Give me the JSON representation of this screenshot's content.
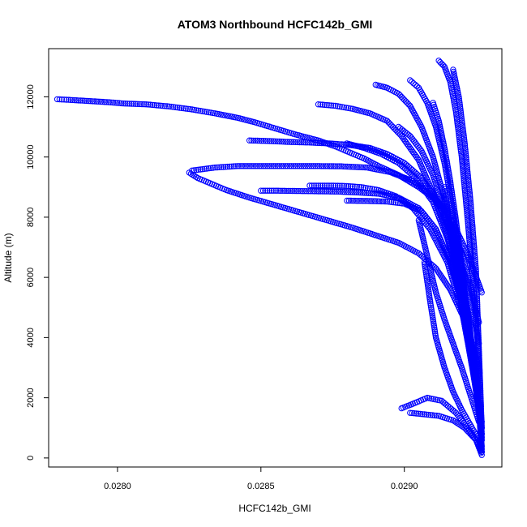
{
  "chart_data": {
    "type": "scatter",
    "title": "ATOM3 Northbound HCFC142b_GMI",
    "xlabel": "HCFC142b_GMI",
    "ylabel": "Altitude (m)",
    "xlim": [
      0.02776,
      0.02934
    ],
    "ylim": [
      -300,
      13600
    ],
    "xticks": [
      {
        "value": 0.028,
        "label": "0.0280"
      },
      {
        "value": 0.0285,
        "label": "0.0285"
      },
      {
        "value": 0.029,
        "label": "0.0290"
      }
    ],
    "yticks": [
      {
        "value": 0,
        "label": "0"
      },
      {
        "value": 2000,
        "label": "2000"
      },
      {
        "value": 4000,
        "label": "4000"
      },
      {
        "value": 6000,
        "label": "6000"
      },
      {
        "value": 8000,
        "label": "8000"
      },
      {
        "value": 10000,
        "label": "10000"
      },
      {
        "value": 12000,
        "label": "12000"
      }
    ],
    "marker": "open-circle",
    "color": "#0000ff",
    "grid": false,
    "legend": "none",
    "series": [
      {
        "x": [
          0.02779,
          0.02783,
          0.0279,
          0.02797,
          0.02802,
          0.0281,
          0.02818,
          0.02826,
          0.02834,
          0.02842,
          0.02848,
          0.02855,
          0.02862,
          0.0287,
          0.02876,
          0.02881,
          0.02886,
          0.02891,
          0.02898,
          0.02905,
          0.02912,
          0.02917,
          0.02922,
          0.02927
        ],
        "y": [
          11920,
          11900,
          11860,
          11820,
          11780,
          11750,
          11680,
          11580,
          11450,
          11300,
          11150,
          10950,
          10750,
          10550,
          10350,
          10150,
          9950,
          9700,
          9400,
          9000,
          8500,
          7800,
          6800,
          5500
        ]
      },
      {
        "x": [
          0.02825,
          0.02828,
          0.02833,
          0.02838,
          0.02846,
          0.02855,
          0.02864,
          0.02873,
          0.02882,
          0.0289,
          0.02898,
          0.02905,
          0.02911,
          0.02916,
          0.02921,
          0.02926
        ],
        "y": [
          9480,
          9300,
          9100,
          8900,
          8650,
          8400,
          8150,
          7900,
          7650,
          7400,
          7150,
          6800,
          6300,
          5600,
          4600,
          3000
        ]
      },
      {
        "x": [
          0.02826,
          0.02834,
          0.02842,
          0.02851,
          0.0286,
          0.02869,
          0.02878,
          0.02887,
          0.02895,
          0.02903,
          0.0291,
          0.02916,
          0.02921,
          0.02926
        ],
        "y": [
          9550,
          9650,
          9700,
          9700,
          9700,
          9700,
          9690,
          9650,
          9500,
          9200,
          8700,
          7800,
          6500,
          4500
        ]
      },
      {
        "x": [
          0.02846,
          0.02853,
          0.0286,
          0.02867,
          0.02874,
          0.02881,
          0.02888,
          0.02894,
          0.029,
          0.02906,
          0.02912,
          0.02917,
          0.02922,
          0.02926
        ],
        "y": [
          10550,
          10530,
          10500,
          10480,
          10450,
          10400,
          10300,
          10100,
          9800,
          9300,
          8500,
          7300,
          5800,
          3800
        ]
      },
      {
        "x": [
          0.0285,
          0.02856,
          0.02863,
          0.0287,
          0.02877,
          0.02884,
          0.02891,
          0.02898,
          0.02905,
          0.02911,
          0.02917,
          0.02922,
          0.02926
        ],
        "y": [
          8880,
          8880,
          8870,
          8860,
          8850,
          8820,
          8780,
          8650,
          8300,
          7600,
          6300,
          4300,
          2000
        ]
      },
      {
        "x": [
          0.0287,
          0.02876,
          0.02882,
          0.02888,
          0.02894,
          0.02899,
          0.02905,
          0.0291,
          0.02915,
          0.0292,
          0.02924,
          0.02927
        ],
        "y": [
          11750,
          11700,
          11600,
          11450,
          11200,
          10700,
          9900,
          8800,
          7400,
          5600,
          3400,
          1200
        ]
      },
      {
        "x": [
          0.0289,
          0.02894,
          0.02898,
          0.02902,
          0.02906,
          0.0291,
          0.02914,
          0.02918,
          0.02922,
          0.02925,
          0.02927
        ],
        "y": [
          12400,
          12300,
          12100,
          11700,
          11000,
          10000,
          8600,
          6800,
          4800,
          2600,
          700
        ]
      },
      {
        "x": [
          0.02902,
          0.02905,
          0.02908,
          0.02911,
          0.02914,
          0.02917,
          0.0292,
          0.02923,
          0.02926,
          0.02927
        ],
        "y": [
          12550,
          12300,
          11800,
          11000,
          9800,
          8200,
          6200,
          4200,
          2000,
          300
        ]
      },
      {
        "x": [
          0.02912,
          0.02914,
          0.02916,
          0.02918,
          0.0292,
          0.02922,
          0.02924,
          0.02926,
          0.02927
        ],
        "y": [
          13200,
          13000,
          12500,
          11500,
          10000,
          8000,
          5800,
          3300,
          800
        ]
      },
      {
        "x": [
          0.02917,
          0.02919,
          0.02921,
          0.02923,
          0.02925,
          0.02926,
          0.02927
        ],
        "y": [
          12900,
          12000,
          10500,
          8600,
          6200,
          3600,
          1000
        ]
      },
      {
        "x": [
          0.0288,
          0.02886,
          0.02892,
          0.02898,
          0.02904,
          0.0291,
          0.02915,
          0.0292,
          0.02924,
          0.02927
        ],
        "y": [
          10450,
          10300,
          10100,
          9800,
          9300,
          8500,
          7300,
          5600,
          3500,
          1000
        ]
      },
      {
        "x": [
          0.0288,
          0.02887,
          0.02894,
          0.029,
          0.02906,
          0.02911,
          0.02916,
          0.02921,
          0.02925
        ],
        "y": [
          8550,
          8540,
          8520,
          8450,
          8200,
          7600,
          6500,
          4800,
          2600
        ]
      },
      {
        "x": [
          0.02867,
          0.02873,
          0.02879,
          0.02885,
          0.02891,
          0.02897,
          0.02903,
          0.02909,
          0.02915,
          0.0292,
          0.02924,
          0.02927
        ],
        "y": [
          9050,
          9050,
          9040,
          9000,
          8900,
          8700,
          8300,
          7600,
          6500,
          4900,
          2900,
          800
        ]
      },
      {
        "x": [
          0.02898,
          0.02902,
          0.02906,
          0.0291,
          0.02914,
          0.02918,
          0.02922,
          0.02925,
          0.02927
        ],
        "y": [
          11000,
          10700,
          10200,
          9400,
          8200,
          6600,
          4700,
          2700,
          600
        ]
      },
      {
        "x": [
          0.0291,
          0.02912,
          0.02914,
          0.02916,
          0.02918,
          0.0292,
          0.02922,
          0.02924,
          0.02926,
          0.02927
        ],
        "y": [
          11800,
          11200,
          10300,
          9200,
          7900,
          6400,
          4800,
          3200,
          1600,
          200
        ]
      },
      {
        "x": [
          0.02907,
          0.02909,
          0.02911,
          0.02914,
          0.02917,
          0.0292,
          0.02923,
          0.02926,
          0.02927
        ],
        "y": [
          6500,
          5200,
          4000,
          3000,
          2200,
          1600,
          1100,
          600,
          200
        ]
      },
      {
        "x": [
          0.02899,
          0.02903,
          0.02908,
          0.02913,
          0.02918,
          0.02922,
          0.02925,
          0.02927
        ],
        "y": [
          1650,
          1800,
          2000,
          1900,
          1500,
          1000,
          600,
          200
        ]
      },
      {
        "x": [
          0.02902,
          0.02907,
          0.02912,
          0.02917,
          0.02921,
          0.02925,
          0.02927
        ],
        "y": [
          1500,
          1450,
          1400,
          1250,
          1000,
          600,
          100
        ]
      },
      {
        "x": [
          0.02914,
          0.02916,
          0.02918,
          0.0292,
          0.02922,
          0.02924,
          0.02926,
          0.02927
        ],
        "y": [
          9000,
          7600,
          6200,
          5000,
          3900,
          2800,
          1600,
          400
        ]
      },
      {
        "x": [
          0.02905,
          0.02908,
          0.02911,
          0.02914,
          0.02917,
          0.0292,
          0.02923,
          0.02926
        ],
        "y": [
          7900,
          6700,
          5500,
          4600,
          3800,
          3000,
          2100,
          1200
        ]
      },
      {
        "x": [
          0.02918,
          0.0292,
          0.02922,
          0.02924,
          0.02926,
          0.02927
        ],
        "y": [
          7500,
          6000,
          4500,
          3200,
          1900,
          600
        ]
      }
    ]
  }
}
